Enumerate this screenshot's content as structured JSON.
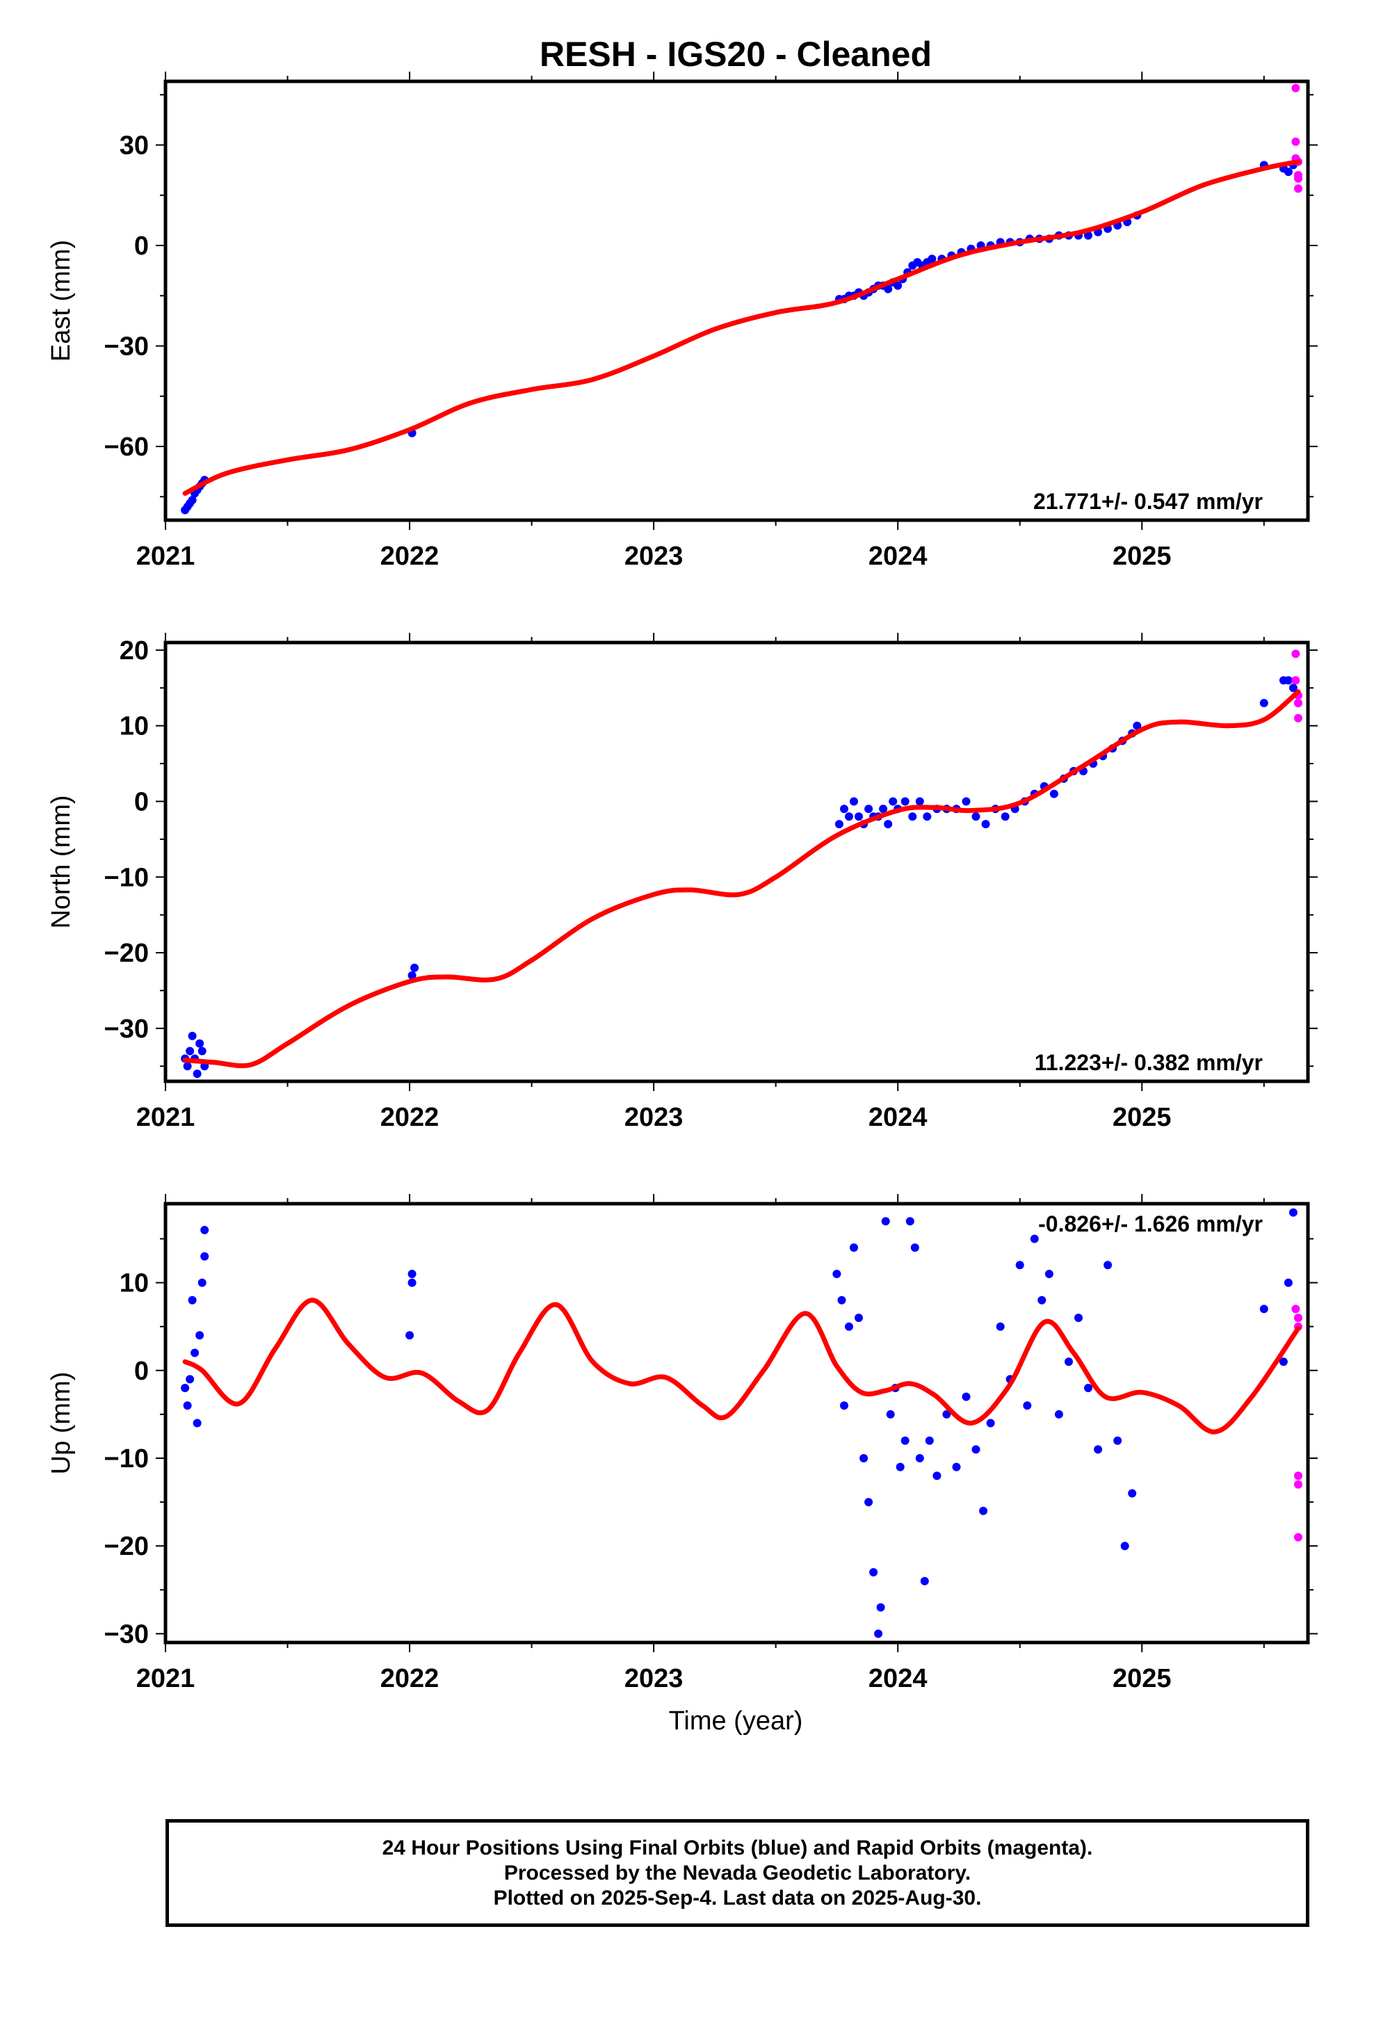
{
  "title": "RESH  - IGS20 - Cleaned",
  "xlabel": "Time (year)",
  "caption": [
    "24 Hour Positions Using Final Orbits (blue) and Rapid Orbits (magenta).",
    "Processed by the Nevada Geodetic Laboratory.",
    "Plotted on 2025-Sep-4. Last data on 2025-Aug-30."
  ],
  "colors": {
    "final": "#0000ff",
    "rapid": "#ff00ff",
    "model": "#ff0000",
    "frame": "#000000"
  },
  "chart_data": [
    {
      "type": "scatter",
      "ylabel": "East (mm)",
      "rate_text": "21.771+/- 0.547 mm/yr",
      "rate_position": "bottom-right",
      "xlim": [
        2021.0,
        2025.68
      ],
      "ylim": [
        -82,
        49
      ],
      "x_ticks": [
        2021,
        2022,
        2023,
        2024,
        2025
      ],
      "y_ticks": [
        30,
        0,
        -30,
        -60
      ],
      "series": [
        {
          "name": "Final Orbits",
          "color": "#0000ff",
          "x": [
            2021.08,
            2021.09,
            2021.1,
            2021.11,
            2021.12,
            2021.13,
            2021.14,
            2021.15,
            2021.16,
            2022.01,
            2023.76,
            2023.78,
            2023.8,
            2023.82,
            2023.84,
            2023.86,
            2023.88,
            2023.9,
            2023.92,
            2023.94,
            2023.96,
            2023.98,
            2024.0,
            2024.02,
            2024.04,
            2024.06,
            2024.08,
            2024.1,
            2024.12,
            2024.14,
            2024.18,
            2024.22,
            2024.26,
            2024.3,
            2024.34,
            2024.38,
            2024.42,
            2024.46,
            2024.5,
            2024.54,
            2024.58,
            2024.62,
            2024.66,
            2024.7,
            2024.74,
            2024.78,
            2024.82,
            2024.86,
            2024.9,
            2024.94,
            2024.98,
            2025.5,
            2025.58,
            2025.6,
            2025.62
          ],
          "y": [
            -79,
            -78,
            -77,
            -76,
            -74,
            -73,
            -72,
            -71,
            -70,
            -56,
            -16,
            -16,
            -15,
            -15,
            -14,
            -15,
            -14,
            -13,
            -12,
            -12,
            -13,
            -11,
            -12,
            -10,
            -8,
            -6,
            -5,
            -6,
            -5,
            -4,
            -4,
            -3,
            -2,
            -1,
            0,
            0,
            1,
            1,
            1,
            2,
            2,
            2,
            3,
            3,
            3,
            3,
            4,
            5,
            6,
            7,
            9,
            24,
            23,
            22,
            24
          ]
        },
        {
          "name": "Rapid Orbits",
          "color": "#ff00ff",
          "x": [
            2025.63,
            2025.63,
            2025.63,
            2025.64,
            2025.64,
            2025.64,
            2025.64
          ],
          "y": [
            47,
            31,
            26,
            25,
            21,
            20,
            17
          ]
        }
      ],
      "model": {
        "name": "Model",
        "color": "#ff0000",
        "x": [
          2021.08,
          2021.25,
          2021.5,
          2021.75,
          2022.0,
          2022.25,
          2022.5,
          2022.75,
          2023.0,
          2023.25,
          2023.5,
          2023.75,
          2024.0,
          2024.25,
          2024.5,
          2024.75,
          2025.0,
          2025.25,
          2025.5,
          2025.64
        ],
        "y": [
          -74,
          -68,
          -64,
          -61,
          -55,
          -47,
          -43,
          -40,
          -33,
          -25,
          -20,
          -17,
          -10,
          -3,
          1,
          4,
          10,
          18,
          23,
          25
        ]
      }
    },
    {
      "type": "scatter",
      "ylabel": "North (mm)",
      "rate_text": "11.223+/- 0.382 mm/yr",
      "rate_position": "bottom-right",
      "xlim": [
        2021.0,
        2025.68
      ],
      "ylim": [
        -37,
        21
      ],
      "x_ticks": [
        2021,
        2022,
        2023,
        2024,
        2025
      ],
      "y_ticks": [
        20,
        10,
        0,
        -10,
        -20,
        -30
      ],
      "series": [
        {
          "name": "Final Orbits",
          "color": "#0000ff",
          "x": [
            2021.08,
            2021.09,
            2021.1,
            2021.11,
            2021.12,
            2021.13,
            2021.14,
            2021.15,
            2021.16,
            2022.01,
            2022.02,
            2023.76,
            2023.78,
            2023.8,
            2023.82,
            2023.84,
            2023.86,
            2023.88,
            2023.9,
            2023.92,
            2023.94,
            2023.96,
            2023.98,
            2024.0,
            2024.03,
            2024.06,
            2024.09,
            2024.12,
            2024.16,
            2024.2,
            2024.24,
            2024.28,
            2024.32,
            2024.36,
            2024.4,
            2024.44,
            2024.48,
            2024.52,
            2024.56,
            2024.6,
            2024.64,
            2024.68,
            2024.72,
            2024.76,
            2024.8,
            2024.84,
            2024.88,
            2024.92,
            2024.96,
            2024.98,
            2025.5,
            2025.58,
            2025.6,
            2025.62
          ],
          "y": [
            -34,
            -35,
            -33,
            -31,
            -34,
            -36,
            -32,
            -33,
            -35,
            -23,
            -22,
            -3,
            -1,
            -2,
            0,
            -2,
            -3,
            -1,
            -2,
            -2,
            -1,
            -3,
            0,
            -1,
            0,
            -2,
            0,
            -2,
            -1,
            -1,
            -1,
            0,
            -2,
            -3,
            -1,
            -2,
            -1,
            0,
            1,
            2,
            1,
            3,
            4,
            4,
            5,
            6,
            7,
            8,
            9,
            10,
            13,
            16,
            16,
            15
          ]
        },
        {
          "name": "Rapid Orbits",
          "color": "#ff00ff",
          "x": [
            2025.63,
            2025.63,
            2025.64,
            2025.64,
            2025.64,
            2025.64
          ],
          "y": [
            19.5,
            16,
            14,
            13,
            13,
            11
          ]
        }
      ],
      "model": {
        "name": "Model",
        "color": "#ff0000",
        "x": [
          2021.08,
          2021.2,
          2021.35,
          2021.5,
          2021.75,
          2022.0,
          2022.15,
          2022.35,
          2022.5,
          2022.75,
          2023.0,
          2023.15,
          2023.35,
          2023.5,
          2023.75,
          2024.0,
          2024.15,
          2024.3,
          2024.5,
          2024.75,
          2025.0,
          2025.15,
          2025.35,
          2025.5,
          2025.64
        ],
        "y": [
          -34.2,
          -34.5,
          -34.8,
          -32,
          -27,
          -23.8,
          -23.2,
          -23.5,
          -21,
          -15.5,
          -12.3,
          -11.7,
          -12.3,
          -10,
          -4.5,
          -1.2,
          -0.8,
          -1.2,
          -0.2,
          4.5,
          9.5,
          10.5,
          10,
          10.8,
          14.5
        ]
      }
    },
    {
      "type": "scatter",
      "ylabel": "Up (mm)",
      "rate_text": "-0.826+/- 1.626 mm/yr",
      "rate_position": "top-right",
      "xlim": [
        2021.0,
        2025.68
      ],
      "ylim": [
        -31,
        19
      ],
      "x_ticks": [
        2021,
        2022,
        2023,
        2024,
        2025
      ],
      "y_ticks": [
        10,
        0,
        -10,
        -20,
        -30
      ],
      "series": [
        {
          "name": "Final Orbits",
          "color": "#0000ff",
          "x": [
            2021.08,
            2021.09,
            2021.1,
            2021.11,
            2021.12,
            2021.13,
            2021.14,
            2021.15,
            2021.16,
            2021.16,
            2022.0,
            2022.01,
            2022.01,
            2023.75,
            2023.77,
            2023.78,
            2023.8,
            2023.82,
            2023.84,
            2023.86,
            2023.88,
            2023.9,
            2023.92,
            2023.93,
            2023.95,
            2023.97,
            2023.99,
            2024.01,
            2024.03,
            2024.05,
            2024.07,
            2024.09,
            2024.11,
            2024.13,
            2024.16,
            2024.2,
            2024.24,
            2024.28,
            2024.32,
            2024.35,
            2024.38,
            2024.42,
            2024.46,
            2024.5,
            2024.53,
            2024.56,
            2024.59,
            2024.62,
            2024.66,
            2024.7,
            2024.74,
            2024.78,
            2024.82,
            2024.86,
            2024.9,
            2024.93,
            2024.96,
            2025.5,
            2025.58,
            2025.6,
            2025.62
          ],
          "y": [
            -2,
            -4,
            -1,
            8,
            2,
            -6,
            4,
            10,
            13,
            16,
            4,
            11,
            10,
            11,
            8,
            -4,
            5,
            14,
            6,
            -10,
            -15,
            -23,
            -30,
            -27,
            17,
            -5,
            -2,
            -11,
            -8,
            17,
            14,
            -10,
            -24,
            -8,
            -12,
            -5,
            -11,
            -3,
            -9,
            -16,
            -6,
            5,
            -1,
            12,
            -4,
            15,
            8,
            11,
            -5,
            1,
            6,
            -2,
            -9,
            12,
            -8,
            -20,
            -14,
            7,
            1,
            10,
            18
          ]
        },
        {
          "name": "Rapid Orbits",
          "color": "#ff00ff",
          "x": [
            2025.63,
            2025.64,
            2025.64,
            2025.64,
            2025.64,
            2025.64
          ],
          "y": [
            7,
            5,
            -12,
            -13,
            -19,
            6
          ]
        }
      ],
      "model": {
        "name": "Model",
        "color": "#ff0000",
        "x": [
          2021.08,
          2021.15,
          2021.3,
          2021.45,
          2021.6,
          2021.75,
          2021.9,
          2022.05,
          2022.2,
          2022.32,
          2022.45,
          2022.6,
          2022.75,
          2022.9,
          2023.05,
          2023.2,
          2023.3,
          2023.45,
          2023.62,
          2023.75,
          2023.85,
          2023.95,
          2024.05,
          2024.15,
          2024.3,
          2024.45,
          2024.6,
          2024.72,
          2024.85,
          2025.0,
          2025.15,
          2025.3,
          2025.45,
          2025.64
        ],
        "y": [
          1,
          0,
          -3.8,
          2.5,
          8,
          3,
          -0.8,
          -0.3,
          -3.5,
          -4.5,
          2,
          7.5,
          1,
          -1.5,
          -0.8,
          -4,
          -5.2,
          0,
          6.5,
          0.5,
          -2.5,
          -2.3,
          -1.5,
          -2.8,
          -6,
          -2,
          5.5,
          2,
          -3,
          -2.5,
          -4,
          -7,
          -3,
          4.8
        ]
      }
    }
  ]
}
